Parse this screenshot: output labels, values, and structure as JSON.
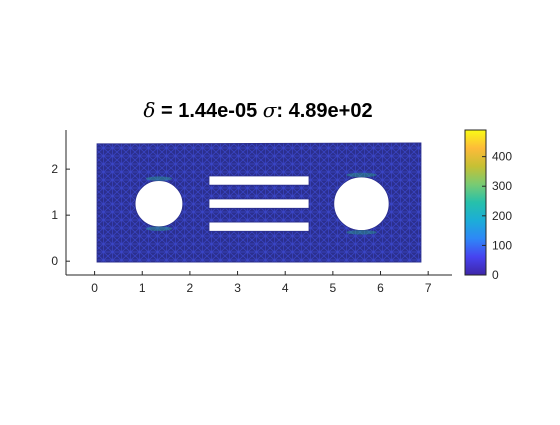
{
  "chart_data": {
    "type": "heatmap",
    "title": {
      "delta_symbol": "δ",
      "delta_text": " = 1.44e-05 ",
      "sigma_symbol": "σ",
      "sigma_text": ": 4.89e+02"
    },
    "xlabel": "",
    "ylabel": "",
    "xlim": [
      -0.6,
      7.5
    ],
    "ylim": [
      -0.3,
      2.85
    ],
    "x_ticks": [
      0,
      1,
      2,
      3,
      4,
      5,
      6,
      7
    ],
    "y_ticks": [
      0,
      1,
      2
    ],
    "colorbar": {
      "range": [
        0,
        490
      ],
      "ticks": [
        0,
        100,
        200,
        300,
        400
      ],
      "colormap": "parula",
      "colors": [
        "#3e26a8",
        "#4743f0",
        "#2e87f7",
        "#1cadd8",
        "#26c0ab",
        "#79cb73",
        "#c6c034",
        "#fdbb39",
        "#f9fb15"
      ]
    },
    "mesh": {
      "outline": [
        [
          0.05,
          2.55
        ],
        [
          6.85,
          2.57
        ],
        [
          6.85,
          -0.02
        ],
        [
          0.05,
          -0.02
        ]
      ],
      "holes": {
        "circles": [
          {
            "cx": 1.35,
            "cy": 1.25,
            "r": 0.5
          },
          {
            "cx": 5.6,
            "cy": 1.25,
            "r": 0.58
          }
        ],
        "slots": [
          {
            "x0": 2.4,
            "x1": 4.5,
            "y0": 1.65,
            "y1": 1.85
          },
          {
            "x0": 2.4,
            "x1": 4.5,
            "y0": 1.15,
            "y1": 1.35
          },
          {
            "x0": 2.4,
            "x1": 4.5,
            "y0": 0.65,
            "y1": 0.85
          }
        ]
      },
      "fill_color": "#2b2f8e",
      "edge_color": "#3a46c8",
      "hotspot_color": "#2fa48c"
    }
  }
}
